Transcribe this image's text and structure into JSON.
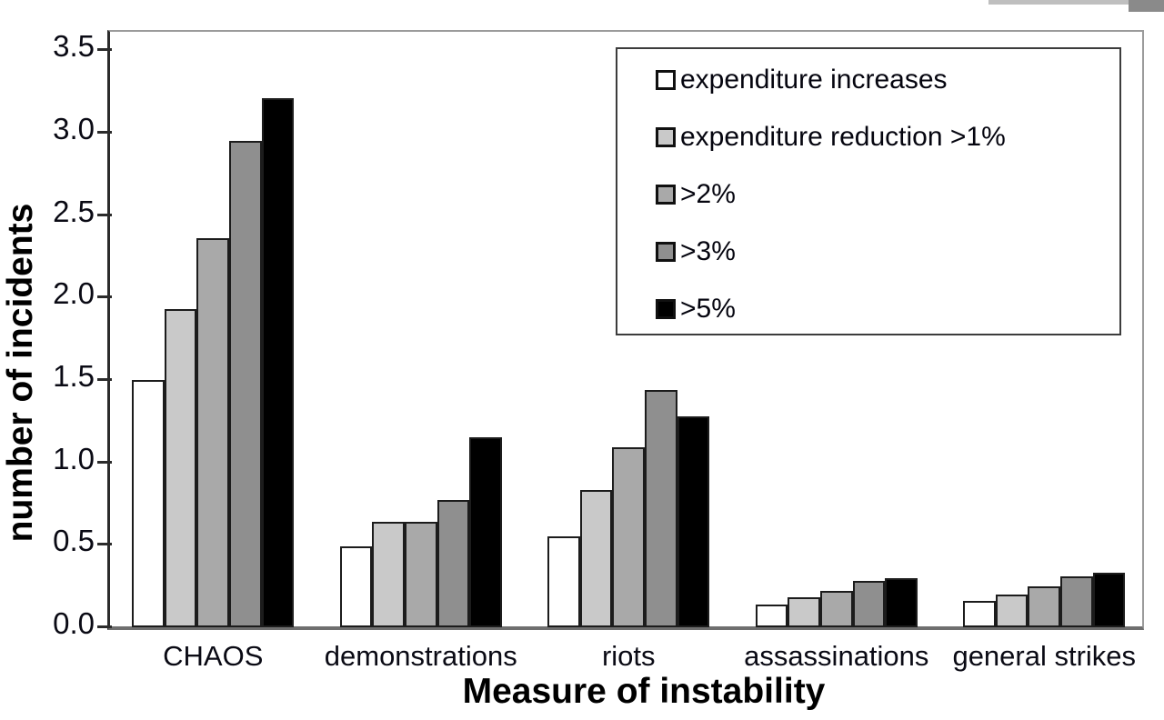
{
  "chart_data": {
    "type": "bar",
    "title": "",
    "xlabel": "Measure of instability",
    "ylabel": "number of incidents",
    "categories": [
      "CHAOS",
      "demonstrations",
      "riots",
      "assassinations",
      "general strikes"
    ],
    "series": [
      {
        "name": "expenditure increases",
        "color": "#ffffff",
        "values": [
          1.5,
          0.49,
          0.55,
          0.14,
          0.16
        ]
      },
      {
        "name": "expenditure reduction >1%",
        "color": "#c9c9c9",
        "values": [
          1.93,
          0.64,
          0.83,
          0.18,
          0.2
        ]
      },
      {
        "name": ">2%",
        "color": "#a9a9a9",
        "values": [
          2.36,
          0.64,
          1.09,
          0.22,
          0.25
        ]
      },
      {
        "name": ">3%",
        "color": "#8f8f8f",
        "values": [
          2.95,
          0.77,
          1.44,
          0.28,
          0.31
        ]
      },
      {
        "name": ">5%",
        "color": "#000000",
        "values": [
          3.21,
          1.15,
          1.28,
          0.3,
          0.33
        ]
      }
    ],
    "y_ticks": [
      "0.0",
      "0.5",
      "1.0",
      "1.5",
      "2.0",
      "2.5",
      "3.0",
      "3.5"
    ],
    "ylim": [
      0,
      3.62
    ],
    "grid": false,
    "legend_position": "top-right",
    "bar_outline_color": "#1c1c1c",
    "axis_color": "#2b2b2b"
  }
}
